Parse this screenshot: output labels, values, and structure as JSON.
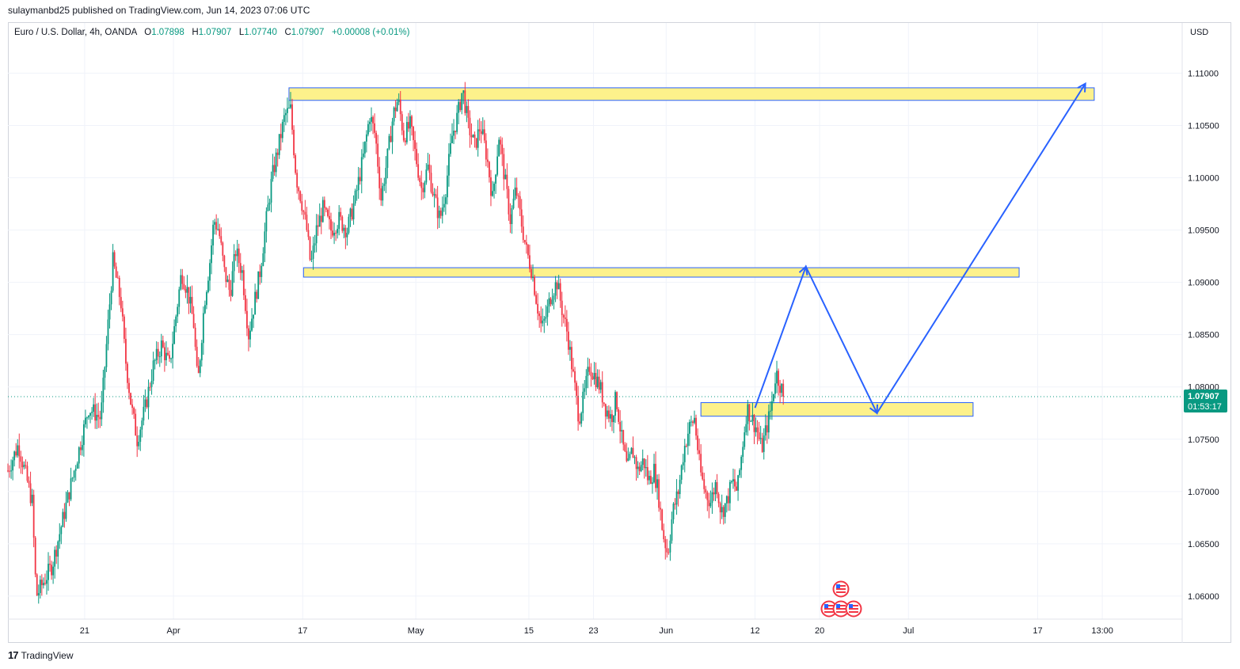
{
  "header": {
    "published": "sulaymanbd25 published on TradingView.com, Jun 14, 2023 07:06 UTC"
  },
  "legend": {
    "symbol": "Euro / U.S. Dollar, 4h, OANDA",
    "o_label": "O",
    "o": "1.07898",
    "h_label": "H",
    "h": "1.07907",
    "l_label": "L",
    "l": "1.07740",
    "c_label": "C",
    "c": "1.07907",
    "change": "+0.00008 (+0.01%)"
  },
  "currency": "USD",
  "price_tag": {
    "price": "1.07907",
    "countdown": "01:53:17"
  },
  "footer": {
    "brand": "TradingView"
  },
  "colors": {
    "up": "#089981",
    "down": "#f23645",
    "zone_fill": "#fdf18b",
    "zone_border": "#2962ff",
    "arrow": "#2962ff",
    "price_tag": "#089981"
  },
  "chart_data": {
    "type": "candlestick",
    "ylim": [
      1.0578,
      1.1148
    ],
    "y_ticks": [
      "1.11000",
      "1.10500",
      "1.10000",
      "1.09500",
      "1.09000",
      "1.08500",
      "1.08000",
      "1.07500",
      "1.07000",
      "1.06500",
      "1.06000"
    ],
    "x_ticks": [
      {
        "label": "21",
        "day": 21
      },
      {
        "label": "Apr",
        "day": 32
      },
      {
        "label": "17",
        "day": 48
      },
      {
        "label": "May",
        "day": 62
      },
      {
        "label": "15",
        "day": 76
      },
      {
        "label": "23",
        "day": 84
      },
      {
        "label": "Jun",
        "day": 93
      },
      {
        "label": "12",
        "day": 104
      },
      {
        "label": "20",
        "day": 112
      },
      {
        "label": "Jul",
        "day": 123
      },
      {
        "label": "17",
        "day": 139
      },
      {
        "label": "13:00",
        "day": 147
      }
    ],
    "zones": [
      {
        "day_start": 46.3,
        "day_end": 146.0,
        "top": 1.1086,
        "bottom": 1.1074
      },
      {
        "day_start": 48.1,
        "day_end": 136.7,
        "top": 1.0914,
        "bottom": 1.0905
      },
      {
        "day_start": 97.3,
        "day_end": 131.0,
        "top": 1.0785,
        "bottom": 1.0772
      }
    ],
    "projection": [
      {
        "day": 104.0,
        "price": 1.078
      },
      {
        "day": 110.3,
        "price": 1.0915
      },
      {
        "day": 119.1,
        "price": 1.0775
      },
      {
        "day": 144.9,
        "price": 1.109
      }
    ],
    "path": [
      {
        "day": 11.5,
        "price": 1.072
      },
      {
        "day": 12.8,
        "price": 1.0745
      },
      {
        "day": 14.5,
        "price": 1.069
      },
      {
        "day": 15.0,
        "price": 1.06
      },
      {
        "day": 17.0,
        "price": 1.063
      },
      {
        "day": 18.5,
        "price": 1.068
      },
      {
        "day": 20.0,
        "price": 1.073
      },
      {
        "day": 21.5,
        "price": 1.078
      },
      {
        "day": 23.0,
        "price": 1.077
      },
      {
        "day": 23.5,
        "price": 1.082
      },
      {
        "day": 24.5,
        "price": 1.092
      },
      {
        "day": 25.5,
        "price": 1.088
      },
      {
        "day": 26.0,
        "price": 1.083
      },
      {
        "day": 26.8,
        "price": 1.078
      },
      {
        "day": 27.5,
        "price": 1.075
      },
      {
        "day": 28.5,
        "price": 1.078
      },
      {
        "day": 29.5,
        "price": 1.082
      },
      {
        "day": 30.5,
        "price": 1.084
      },
      {
        "day": 31.5,
        "price": 1.082
      },
      {
        "day": 32.5,
        "price": 1.088
      },
      {
        "day": 33.0,
        "price": 1.091
      },
      {
        "day": 33.8,
        "price": 1.089
      },
      {
        "day": 34.5,
        "price": 1.086
      },
      {
        "day": 35.0,
        "price": 1.08
      },
      {
        "day": 35.8,
        "price": 1.088
      },
      {
        "day": 36.5,
        "price": 1.092
      },
      {
        "day": 37.0,
        "price": 1.096
      },
      {
        "day": 37.6,
        "price": 1.095
      },
      {
        "day": 38.3,
        "price": 1.091
      },
      {
        "day": 39.0,
        "price": 1.089
      },
      {
        "day": 39.7,
        "price": 1.093
      },
      {
        "day": 40.5,
        "price": 1.091
      },
      {
        "day": 41.3,
        "price": 1.085
      },
      {
        "day": 42.0,
        "price": 1.088
      },
      {
        "day": 42.7,
        "price": 1.091
      },
      {
        "day": 43.5,
        "price": 1.096
      },
      {
        "day": 44.2,
        "price": 1.1
      },
      {
        "day": 45.0,
        "price": 1.103
      },
      {
        "day": 45.8,
        "price": 1.106
      },
      {
        "day": 46.5,
        "price": 1.1065
      },
      {
        "day": 47.2,
        "price": 1.1
      },
      {
        "day": 47.8,
        "price": 1.098
      },
      {
        "day": 48.5,
        "price": 1.095
      },
      {
        "day": 49.0,
        "price": 1.0915
      },
      {
        "day": 49.7,
        "price": 1.095
      },
      {
        "day": 50.5,
        "price": 1.097
      },
      {
        "day": 51.5,
        "price": 1.095
      },
      {
        "day": 52.5,
        "price": 1.096
      },
      {
        "day": 53.5,
        "price": 1.095
      },
      {
        "day": 54.5,
        "price": 1.098
      },
      {
        "day": 55.5,
        "price": 1.102
      },
      {
        "day": 56.3,
        "price": 1.106
      },
      {
        "day": 57.0,
        "price": 1.104
      },
      {
        "day": 57.7,
        "price": 1.098
      },
      {
        "day": 58.5,
        "price": 1.102
      },
      {
        "day": 59.2,
        "price": 1.106
      },
      {
        "day": 59.8,
        "price": 1.1075
      },
      {
        "day": 60.5,
        "price": 1.104
      },
      {
        "day": 61.3,
        "price": 1.105
      },
      {
        "day": 62.0,
        "price": 1.102
      },
      {
        "day": 62.7,
        "price": 1.099
      },
      {
        "day": 63.5,
        "price": 1.101
      },
      {
        "day": 64.3,
        "price": 1.098
      },
      {
        "day": 65.0,
        "price": 1.096
      },
      {
        "day": 65.7,
        "price": 1.099
      },
      {
        "day": 66.5,
        "price": 1.104
      },
      {
        "day": 67.2,
        "price": 1.106
      },
      {
        "day": 67.8,
        "price": 1.1085
      },
      {
        "day": 68.5,
        "price": 1.105
      },
      {
        "day": 69.3,
        "price": 1.103
      },
      {
        "day": 70.0,
        "price": 1.105
      },
      {
        "day": 70.8,
        "price": 1.102
      },
      {
        "day": 71.5,
        "price": 1.098
      },
      {
        "day": 72.3,
        "price": 1.104
      },
      {
        "day": 73.0,
        "price": 1.1
      },
      {
        "day": 73.7,
        "price": 1.096
      },
      {
        "day": 74.4,
        "price": 1.099
      },
      {
        "day": 75.0,
        "price": 1.096
      },
      {
        "day": 75.7,
        "price": 1.093
      },
      {
        "day": 76.4,
        "price": 1.091
      },
      {
        "day": 77.0,
        "price": 1.088
      },
      {
        "day": 77.6,
        "price": 1.0855
      },
      {
        "day": 78.2,
        "price": 1.087
      },
      {
        "day": 78.8,
        "price": 1.089
      },
      {
        "day": 79.5,
        "price": 1.09
      },
      {
        "day": 80.2,
        "price": 1.087
      },
      {
        "day": 80.8,
        "price": 1.085
      },
      {
        "day": 81.5,
        "price": 1.081
      },
      {
        "day": 82.2,
        "price": 1.077
      },
      {
        "day": 82.8,
        "price": 1.079
      },
      {
        "day": 83.5,
        "price": 1.082
      },
      {
        "day": 84.2,
        "price": 1.081
      },
      {
        "day": 84.8,
        "price": 1.08
      },
      {
        "day": 85.5,
        "price": 1.078
      },
      {
        "day": 86.2,
        "price": 1.077
      },
      {
        "day": 86.8,
        "price": 1.079
      },
      {
        "day": 87.5,
        "price": 1.075
      },
      {
        "day": 88.2,
        "price": 1.072
      },
      {
        "day": 88.8,
        "price": 1.074
      },
      {
        "day": 89.5,
        "price": 1.072
      },
      {
        "day": 90.2,
        "price": 1.073
      },
      {
        "day": 90.8,
        "price": 1.071
      },
      {
        "day": 91.5,
        "price": 1.072
      },
      {
        "day": 92.0,
        "price": 1.07
      },
      {
        "day": 92.6,
        "price": 1.066
      },
      {
        "day": 93.2,
        "price": 1.064
      },
      {
        "day": 93.8,
        "price": 1.068
      },
      {
        "day": 94.5,
        "price": 1.07
      },
      {
        "day": 95.2,
        "price": 1.074
      },
      {
        "day": 95.8,
        "price": 1.076
      },
      {
        "day": 96.5,
        "price": 1.077
      },
      {
        "day": 97.2,
        "price": 1.072
      },
      {
        "day": 97.8,
        "price": 1.07
      },
      {
        "day": 98.5,
        "price": 1.069
      },
      {
        "day": 99.2,
        "price": 1.071
      },
      {
        "day": 99.8,
        "price": 1.068
      },
      {
        "day": 100.5,
        "price": 1.069
      },
      {
        "day": 101.2,
        "price": 1.071
      },
      {
        "day": 101.8,
        "price": 1.07
      },
      {
        "day": 102.4,
        "price": 1.074
      },
      {
        "day": 103.0,
        "price": 1.078
      },
      {
        "day": 103.6,
        "price": 1.077
      },
      {
        "day": 104.2,
        "price": 1.076
      },
      {
        "day": 104.8,
        "price": 1.074
      },
      {
        "day": 105.4,
        "price": 1.076
      },
      {
        "day": 106.0,
        "price": 1.078
      },
      {
        "day": 106.6,
        "price": 1.0815
      },
      {
        "day": 107.2,
        "price": 1.08
      },
      {
        "day": 107.7,
        "price": 1.079
      }
    ]
  }
}
